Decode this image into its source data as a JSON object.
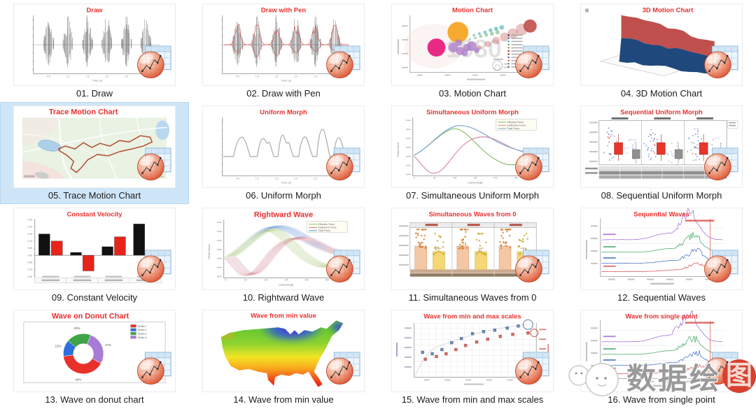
{
  "page": {
    "background": "#ffffff",
    "title_color": "#e8302e",
    "selected_highlight": "#cfe6f8"
  },
  "watermark": {
    "text_gray": "数据绘",
    "text_red": "图"
  },
  "tiles": [
    {
      "caption": "01. Draw",
      "title": "Draw",
      "type": "waveform",
      "xlabel": "Time (s)",
      "xticks": [
        "0.5",
        "1.0",
        "1.5",
        "2.0",
        "2.5",
        "3.0"
      ]
    },
    {
      "caption": "02. Draw with Pen",
      "title": "Draw with Pen",
      "type": "waveform-pen",
      "xlabel": "Time (s)",
      "xticks": [
        "0.5",
        "1.0",
        "1.5",
        "2.0",
        "2.5",
        "3.0"
      ]
    },
    {
      "caption": "03. Motion Chart",
      "title": "Motion Chart",
      "type": "bubble",
      "year_label": "1980"
    },
    {
      "caption": "04. 3D Motion Chart",
      "title": "3D Motion Chart",
      "type": "3d-surface",
      "surface_colors": [
        "#c0504d",
        "#1f497d"
      ]
    },
    {
      "caption": "05. Trace Motion Chart",
      "title": "Trace Motion Chart",
      "type": "map-trace",
      "selected": true
    },
    {
      "caption": "06. Uniform Morph",
      "title": "Uniform Morph",
      "type": "line",
      "xlabel": "Time (s)",
      "xticks": [
        "0.5",
        "1.0",
        "1.5",
        "2.0",
        "2.5",
        "3.0"
      ]
    },
    {
      "caption": "07. Simultaneous Uniform Morph",
      "title": "Simultaneous Uniform Morph",
      "type": "line-3series",
      "legend": [
        "Effective Force",
        "Ineffective Force",
        "Total Force"
      ],
      "legend_colors": [
        "#8db96a",
        "#d98ca0",
        "#7da7d9"
      ],
      "xlabel": "Crank Angle",
      "ylabel": "Pedal Force",
      "xticks": [
        "0",
        "50",
        "100",
        "150",
        "200",
        "250",
        "300"
      ]
    },
    {
      "caption": "08. Sequential Uniform Morph",
      "title": "Sequential Uniform Morph",
      "type": "box-scatter-panels",
      "panel_count": 3,
      "box_colors": [
        "#e8362a",
        "#909090"
      ]
    },
    {
      "caption": "09. Constant Velocity",
      "title": "Constant Velocity",
      "type": "bar",
      "chart": {
        "type": "bar",
        "series": [
          {
            "name": "black",
            "color": "#111111",
            "values": [
              0.15,
              0.02,
              0.06,
              0.22
            ]
          },
          {
            "name": "red",
            "color": "#e8231a",
            "values": [
              0.1,
              -0.11,
              0.13,
              -0.02
            ]
          }
        ],
        "ylim": [
          -0.15,
          0.25
        ],
        "yticks": [
          "0.25",
          "0.20",
          "0.15",
          "0.10",
          "0.05",
          "0.00",
          "-0.05",
          "-0.10",
          "-0.15"
        ]
      }
    },
    {
      "caption": "10. Rightward Wave",
      "title": "Rightward Wave",
      "type": "line-bands",
      "legend": [
        "Effective Force",
        "Ineffective Force",
        "Total Force"
      ],
      "legend_colors": [
        "#9ec46a",
        "#cc7788",
        "#5b8ed6"
      ],
      "xlabel": "Crank Angle",
      "ylabel": "Pedal Force",
      "xticks": [
        "0",
        "50",
        "100",
        "150",
        "200",
        "250",
        "300"
      ]
    },
    {
      "caption": "11. Simultaneous Waves from 0",
      "title": "Simultaneous Waves from 0",
      "type": "bar-scatter-panels",
      "panel_count": 3,
      "bar_colors": [
        "#f4c8a4",
        "#f6d775"
      ],
      "dot_colors": [
        "#e58b3a",
        "#ddb93d"
      ]
    },
    {
      "caption": "12. Sequential Waves",
      "title": "Sequential Waves",
      "type": "spectra",
      "curve_colors": [
        "#a06cd5",
        "#4aa96c",
        "#4472c4",
        "#d9534f"
      ],
      "marker_line_color": "#d9534f"
    },
    {
      "caption": "13. Wave on donut chart",
      "title": "Wave on Donut Chart",
      "type": "donut",
      "chart": {
        "type": "pie",
        "legend": [
          "Series 1",
          "Series 2",
          "Series 3",
          "Series 4"
        ],
        "colors": [
          "#e8312a",
          "#2d6fe0",
          "#41a349",
          "#a87bd6"
        ],
        "values": [
          40,
          13,
          20,
          27
        ],
        "labels": [
          "40%",
          "13%",
          "20%",
          "27%"
        ]
      }
    },
    {
      "caption": "14. Wave from min value",
      "title": "Wave from min value",
      "type": "contour-map-usa"
    },
    {
      "caption": "15. Wave from min and max scales",
      "title": "Wave from min and max scales",
      "type": "scatter-dual-axis",
      "point_colors": [
        "#5b7fa6",
        "#cc5b52"
      ]
    },
    {
      "caption": "16. Wave from single point",
      "title": "Wave from single point",
      "type": "spectra",
      "curve_colors": [
        "#a06cd5",
        "#4aa96c",
        "#4472c4",
        "#d9534f"
      ],
      "marker_line_color": "#d9534f"
    }
  ]
}
